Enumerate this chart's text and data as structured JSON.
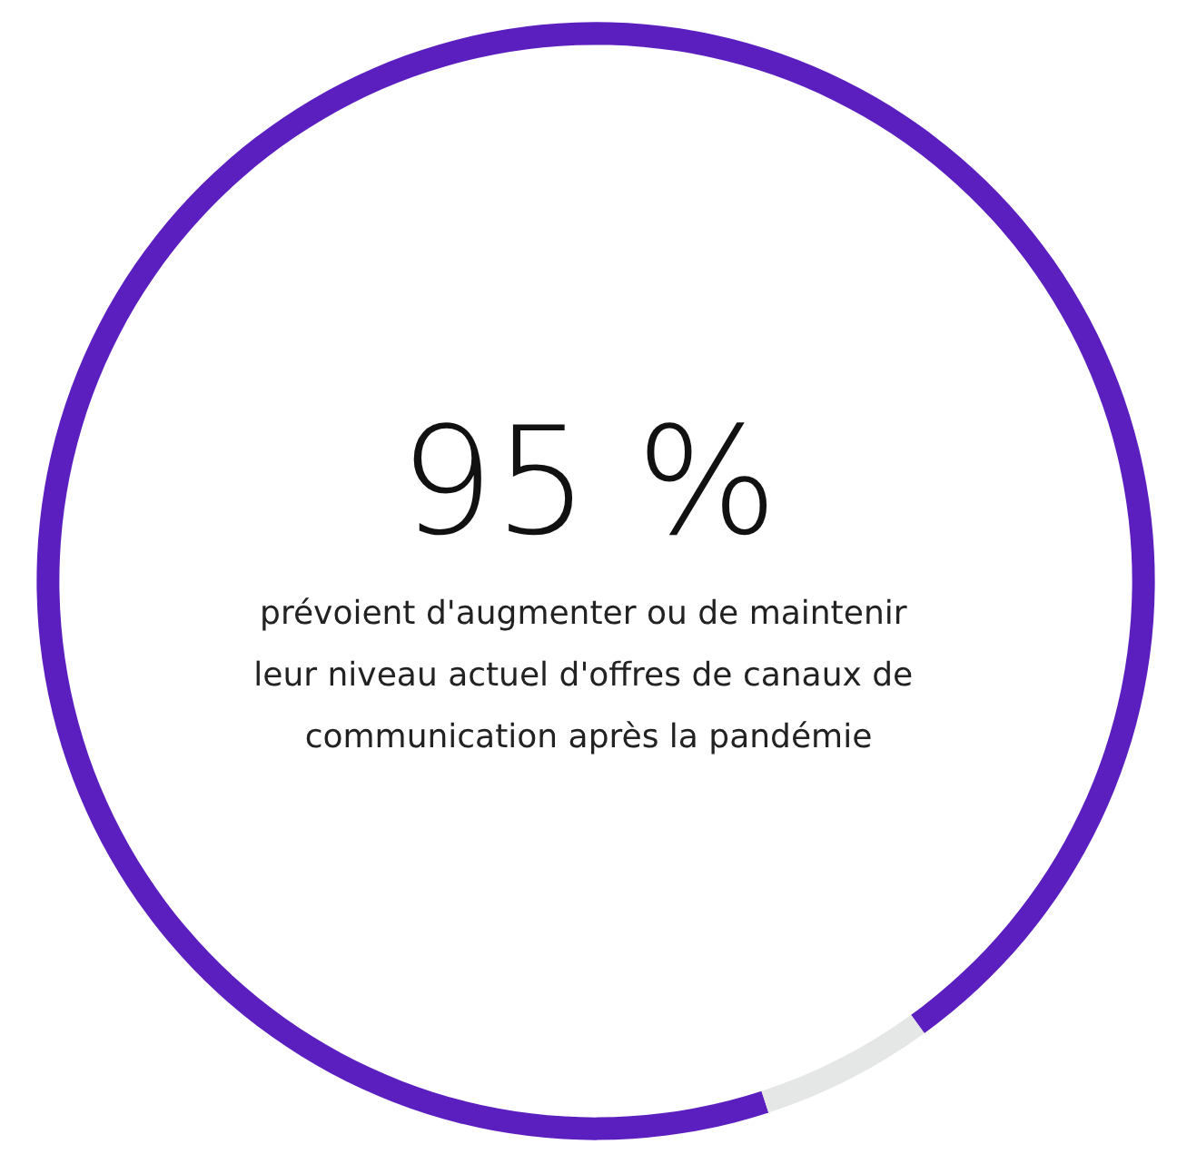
{
  "chart_data": {
    "type": "donut",
    "title": "95 %",
    "subtitle": "prévoient d'augmenter ou de maintenir leur niveau actuel d'offres de canaux de communication après la pandémie",
    "categories": [
      null,
      null
    ],
    "values": [
      95,
      5
    ],
    "colors": [
      "#5b1fc0",
      "#e5e6e6"
    ]
  }
}
